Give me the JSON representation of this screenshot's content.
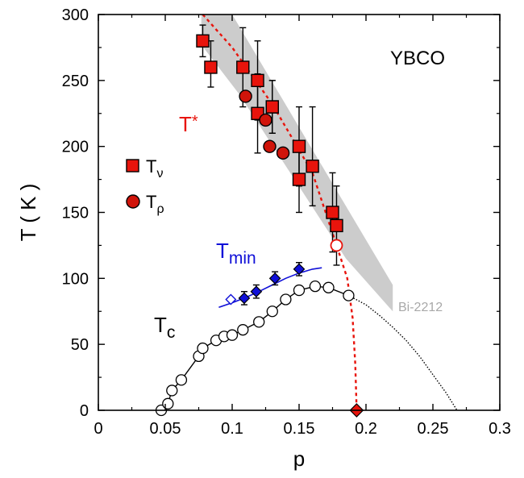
{
  "chart_data": {
    "type": "scatter",
    "title": "",
    "xlabel": "p",
    "ylabel": "T ( K )",
    "xlim": [
      0,
      0.3
    ],
    "ylim": [
      0,
      300
    ],
    "xticks": [
      "0",
      "0.05",
      "0.1",
      "0.15",
      "0.2",
      "0.25",
      "0.3"
    ],
    "yticks": [
      "0",
      "50",
      "100",
      "150",
      "200",
      "250",
      "300"
    ],
    "grid": false,
    "annotations": {
      "material": "YBCO",
      "band_label": "Bi-2212",
      "tstar": {
        "main": "T",
        "sup": "*"
      },
      "tmin": {
        "main": "T",
        "sub": "min"
      },
      "tc": {
        "main": "T",
        "sub": "c"
      }
    },
    "legend": {
      "placement": "middle-left",
      "entries": [
        {
          "main": "T",
          "sub": "ν",
          "marker": "square"
        },
        {
          "main": "T",
          "sub": "ρ",
          "marker": "circle"
        }
      ]
    },
    "colors": {
      "tstar": "#e8140c",
      "tmin": "#1010d8",
      "band": "#cccccc",
      "band_label": "#a8a8a8",
      "tc": "#000000"
    },
    "band": [
      [
        0.077,
        300
      ],
      [
        0.1,
        300
      ],
      [
        0.22,
        95
      ],
      [
        0.22,
        75
      ],
      [
        0.185,
        115
      ],
      [
        0.105,
        240
      ],
      [
        0.077,
        277
      ]
    ],
    "series": [
      {
        "name": "Tν",
        "marker": "square",
        "x": [
          0.078,
          0.084,
          0.108,
          0.119,
          0.119,
          0.13,
          0.13,
          0.15,
          0.15,
          0.16,
          0.175,
          0.178
        ],
        "y": [
          280,
          260,
          260,
          250,
          225,
          230,
          230,
          200,
          175,
          185,
          150,
          140
        ],
        "err_up": [
          12,
          20,
          30,
          30,
          30,
          20,
          20,
          30,
          25,
          45,
          30,
          30
        ],
        "err_down": [
          12,
          15,
          30,
          30,
          30,
          20,
          20,
          30,
          25,
          30,
          30,
          30
        ]
      },
      {
        "name": "Tρ",
        "marker": "circle",
        "x": [
          0.11,
          0.125,
          0.128,
          0.138
        ],
        "y": [
          238,
          220,
          200,
          195
        ]
      },
      {
        "name": "Tmin",
        "marker": "diamond",
        "x": [
          0.109,
          0.118,
          0.132,
          0.15
        ],
        "y": [
          85,
          90,
          100,
          107
        ],
        "err": [
          5,
          5,
          5,
          5
        ]
      },
      {
        "name": "Tmin open",
        "marker": "open-diamond",
        "x": [
          0.099
        ],
        "y": [
          84
        ]
      },
      {
        "name": "Tc",
        "marker": "open-circle",
        "x": [
          0.047,
          0.052,
          0.055,
          0.062,
          0.075,
          0.078,
          0.088,
          0.094,
          0.1,
          0.108,
          0.12,
          0.13,
          0.14,
          0.15,
          0.162,
          0.172,
          0.187
        ],
        "y": [
          0,
          5,
          15,
          23,
          41,
          47,
          53,
          56,
          57,
          61,
          67,
          75,
          84,
          91,
          94,
          93,
          87
        ]
      },
      {
        "name": "T* open",
        "marker": "open-circle",
        "x": [
          0.178
        ],
        "y": [
          125
        ]
      },
      {
        "name": "T* endpoint",
        "marker": "diamond",
        "x": [
          0.193
        ],
        "y": [
          0
        ]
      }
    ],
    "lines": {
      "tstar_dashed": {
        "x": [
          0.078,
          0.1,
          0.13,
          0.16,
          0.178,
          0.186,
          0.19,
          0.192,
          0.193
        ],
        "y": [
          300,
          275,
          232,
          180,
          125,
          100,
          70,
          35,
          0
        ]
      },
      "tmin_fit": {
        "x": [
          0.09,
          0.1,
          0.11,
          0.12,
          0.13,
          0.14,
          0.15,
          0.16,
          0.167
        ],
        "y": [
          78,
          81.5,
          85.5,
          90,
          95,
          100,
          104,
          107,
          108
        ]
      },
      "tc_solid": {
        "x": [
          0.047,
          0.052,
          0.055,
          0.062,
          0.075,
          0.078,
          0.088,
          0.094,
          0.1,
          0.108,
          0.12,
          0.13,
          0.14,
          0.15,
          0.162,
          0.172,
          0.187
        ],
        "y": [
          0,
          5,
          15,
          23,
          41,
          47,
          53,
          56,
          57,
          61,
          67,
          75,
          84,
          91,
          94,
          93,
          87
        ]
      },
      "tc_dotted": {
        "x": [
          0.187,
          0.2,
          0.21,
          0.22,
          0.23,
          0.24,
          0.25,
          0.26,
          0.268
        ],
        "y": [
          87,
          80,
          72,
          63,
          53,
          41,
          27,
          13,
          0
        ]
      }
    }
  }
}
